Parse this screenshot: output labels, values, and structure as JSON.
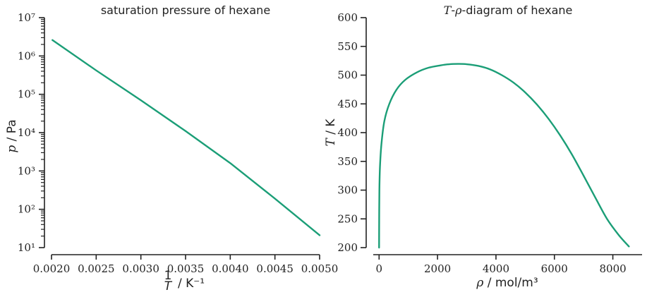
{
  "chart_data": [
    {
      "type": "line",
      "title": "saturation pressure of hexane",
      "xlabel": "1/T / K⁻¹",
      "ylabel": "p / Pa",
      "xlim": [
        0.002,
        0.005
      ],
      "ylim": [
        10,
        10000000
      ],
      "yscale": "log",
      "grid": false,
      "x_ticks": [
        "0.0020",
        "0.0025",
        "0.0030",
        "0.0035",
        "0.0040",
        "0.0045",
        "0.0050"
      ],
      "y_ticks": [
        "10¹",
        "10²",
        "10³",
        "10⁴",
        "10⁵",
        "10⁶",
        "10⁷"
      ],
      "color": "#1b9e77",
      "series": [
        {
          "x": [
            0.00201,
            0.0025,
            0.003,
            0.0035,
            0.004,
            0.0045,
            0.005
          ],
          "y": [
            2600000,
            420000,
            70000,
            11000,
            1600,
            190,
            21
          ]
        }
      ]
    },
    {
      "type": "line",
      "title": "T-ρ-diagram of hexane",
      "xlabel": "ρ / mol/m³",
      "ylabel": "T / K",
      "xlim": [
        -200,
        9000
      ],
      "ylim": [
        200,
        600
      ],
      "grid": false,
      "x_ticks": [
        "0",
        "2000",
        "4000",
        "6000",
        "8000"
      ],
      "y_ticks": [
        "200",
        "250",
        "300",
        "350",
        "400",
        "450",
        "500",
        "550",
        "600"
      ],
      "color": "#1b9e77",
      "series": [
        {
          "x": [
            0,
            3,
            10,
            30,
            80,
            180,
            350,
            600,
            900,
            1300,
            1700,
            2100,
            2400,
            2700,
            3000,
            3400,
            3800,
            4200,
            4600,
            5000,
            5400,
            5800,
            6200,
            6600,
            7000,
            7400,
            7800,
            8200,
            8550
          ],
          "y": [
            200,
            250,
            300,
            340,
            380,
            420,
            450,
            475,
            492,
            505,
            513,
            517,
            519,
            519.5,
            519,
            516,
            510,
            500,
            487,
            470,
            449,
            424,
            395,
            362,
            325,
            287,
            250,
            222,
            202
          ]
        }
      ]
    }
  ]
}
